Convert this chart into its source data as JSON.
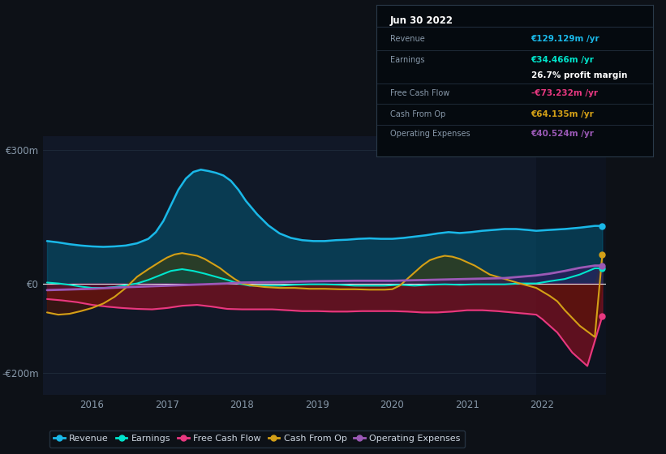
{
  "bg_color": "#0d1117",
  "chart_bg": "#111827",
  "title": "Jun 30 2022",
  "ylim": [
    -250,
    330
  ],
  "yticks": [
    -200,
    0,
    300
  ],
  "ytick_labels": [
    "-€200m",
    "€0",
    "€300m"
  ],
  "xmin": 2015.35,
  "xmax": 2022.85,
  "highlight_start": 2021.92,
  "legend": [
    {
      "label": "Revenue",
      "color": "#1ab8e8"
    },
    {
      "label": "Earnings",
      "color": "#00e5cc"
    },
    {
      "label": "Free Cash Flow",
      "color": "#e83880"
    },
    {
      "label": "Cash From Op",
      "color": "#d4a017"
    },
    {
      "label": "Operating Expenses",
      "color": "#9b59b6"
    }
  ],
  "revenue_x": [
    2015.4,
    2015.55,
    2015.7,
    2015.85,
    2016.0,
    2016.15,
    2016.3,
    2016.45,
    2016.6,
    2016.75,
    2016.85,
    2016.95,
    2017.05,
    2017.15,
    2017.25,
    2017.35,
    2017.45,
    2017.55,
    2017.65,
    2017.75,
    2017.85,
    2017.95,
    2018.05,
    2018.2,
    2018.35,
    2018.5,
    2018.65,
    2018.8,
    2018.95,
    2019.1,
    2019.25,
    2019.4,
    2019.55,
    2019.7,
    2019.85,
    2020.0,
    2020.15,
    2020.3,
    2020.45,
    2020.6,
    2020.75,
    2020.9,
    2021.05,
    2021.2,
    2021.35,
    2021.5,
    2021.65,
    2021.8,
    2021.92,
    2022.1,
    2022.3,
    2022.5,
    2022.7,
    2022.8
  ],
  "revenue_y": [
    95,
    92,
    88,
    85,
    83,
    82,
    83,
    85,
    90,
    100,
    115,
    140,
    175,
    210,
    235,
    250,
    255,
    252,
    248,
    242,
    230,
    210,
    185,
    155,
    130,
    112,
    102,
    97,
    95,
    95,
    97,
    98,
    100,
    101,
    100,
    100,
    102,
    105,
    108,
    112,
    115,
    113,
    115,
    118,
    120,
    122,
    122,
    120,
    118,
    120,
    122,
    125,
    129,
    129
  ],
  "earnings_x": [
    2015.4,
    2015.55,
    2015.7,
    2015.85,
    2016.0,
    2016.15,
    2016.3,
    2016.45,
    2016.6,
    2016.75,
    2016.9,
    2017.05,
    2017.2,
    2017.35,
    2017.5,
    2017.65,
    2017.8,
    2017.95,
    2018.1,
    2018.3,
    2018.5,
    2018.7,
    2018.9,
    2019.1,
    2019.3,
    2019.5,
    2019.7,
    2019.9,
    2020.1,
    2020.3,
    2020.5,
    2020.7,
    2020.9,
    2021.1,
    2021.3,
    2021.5,
    2021.7,
    2021.92,
    2022.1,
    2022.3,
    2022.5,
    2022.7,
    2022.8
  ],
  "earnings_y": [
    2,
    0,
    -3,
    -7,
    -10,
    -10,
    -8,
    -4,
    0,
    8,
    18,
    28,
    32,
    28,
    22,
    15,
    8,
    0,
    -5,
    -5,
    -5,
    -3,
    -2,
    -2,
    -3,
    -5,
    -5,
    -5,
    -3,
    -5,
    -3,
    -2,
    -3,
    -2,
    -2,
    -2,
    0,
    0,
    5,
    10,
    20,
    34,
    34
  ],
  "fcf_x": [
    2015.4,
    2015.6,
    2015.8,
    2016.0,
    2016.2,
    2016.4,
    2016.6,
    2016.8,
    2017.0,
    2017.2,
    2017.4,
    2017.6,
    2017.8,
    2018.0,
    2018.2,
    2018.4,
    2018.6,
    2018.8,
    2019.0,
    2019.2,
    2019.4,
    2019.6,
    2019.8,
    2020.0,
    2020.2,
    2020.4,
    2020.6,
    2020.8,
    2021.0,
    2021.2,
    2021.4,
    2021.6,
    2021.8,
    2021.92,
    2022.0,
    2022.2,
    2022.4,
    2022.6,
    2022.8
  ],
  "fcf_y": [
    -35,
    -38,
    -42,
    -48,
    -52,
    -55,
    -57,
    -58,
    -55,
    -50,
    -48,
    -52,
    -57,
    -58,
    -58,
    -58,
    -60,
    -62,
    -62,
    -63,
    -63,
    -62,
    -62,
    -62,
    -63,
    -65,
    -65,
    -63,
    -60,
    -60,
    -62,
    -65,
    -68,
    -70,
    -80,
    -110,
    -155,
    -185,
    -73
  ],
  "cfop_x": [
    2015.4,
    2015.55,
    2015.7,
    2015.85,
    2016.0,
    2016.15,
    2016.3,
    2016.45,
    2016.6,
    2016.75,
    2016.9,
    2017.0,
    2017.1,
    2017.2,
    2017.3,
    2017.4,
    2017.5,
    2017.6,
    2017.7,
    2017.8,
    2017.9,
    2018.0,
    2018.15,
    2018.3,
    2018.5,
    2018.7,
    2018.9,
    2019.1,
    2019.3,
    2019.5,
    2019.7,
    2019.9,
    2020.0,
    2020.1,
    2020.2,
    2020.3,
    2020.4,
    2020.5,
    2020.6,
    2020.7,
    2020.8,
    2020.9,
    2021.1,
    2021.3,
    2021.5,
    2021.7,
    2021.92,
    2022.0,
    2022.1,
    2022.2,
    2022.3,
    2022.5,
    2022.7,
    2022.8
  ],
  "cfop_y": [
    -65,
    -70,
    -68,
    -62,
    -55,
    -45,
    -30,
    -10,
    15,
    32,
    48,
    58,
    65,
    68,
    65,
    62,
    55,
    45,
    35,
    22,
    10,
    0,
    -5,
    -8,
    -10,
    -10,
    -12,
    -12,
    -13,
    -13,
    -14,
    -14,
    -13,
    -5,
    10,
    25,
    40,
    52,
    58,
    62,
    60,
    55,
    40,
    20,
    10,
    0,
    -10,
    -18,
    -28,
    -40,
    -60,
    -95,
    -120,
    64
  ],
  "opex_x": [
    2015.4,
    2016.0,
    2016.5,
    2017.0,
    2017.5,
    2017.8,
    2018.0,
    2018.5,
    2019.0,
    2019.5,
    2020.0,
    2020.5,
    2021.0,
    2021.5,
    2021.92,
    2022.1,
    2022.3,
    2022.5,
    2022.7,
    2022.8
  ],
  "opex_y": [
    -15,
    -12,
    -8,
    -5,
    -2,
    0,
    2,
    3,
    5,
    6,
    6,
    8,
    10,
    12,
    18,
    22,
    28,
    35,
    40,
    40
  ]
}
